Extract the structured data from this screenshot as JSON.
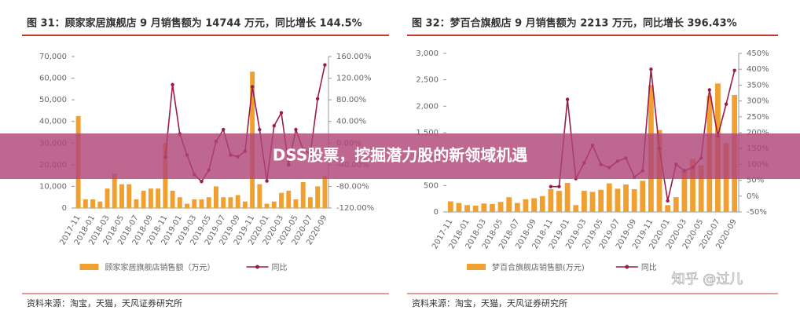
{
  "chart_data": [
    {
      "type": "bar-line",
      "title": "图 31：顾家家居旗舰店 9 月销售额为 14744 万元，同比增长 144.5%",
      "categories": [
        "2017-11",
        null,
        "2018-01",
        null,
        "2018-03",
        null,
        "2018-05",
        null,
        "2018-07",
        null,
        "2018-09",
        null,
        "2018-11",
        null,
        "2019-01",
        null,
        "2019-03",
        null,
        "2019-05",
        null,
        "2019-07",
        null,
        "2019-09",
        null,
        "2019-11",
        null,
        "2020-01",
        null,
        "2020-03",
        null,
        "2020-05",
        null,
        "2020-07",
        null,
        "2020-09"
      ],
      "series": [
        {
          "name": "顾家家居旗舰店销售额（万元）",
          "color": "#f0a030",
          "kind": "bar",
          "values": [
            42500,
            4000,
            4000,
            3000,
            9000,
            16000,
            11000,
            11000,
            4000,
            8000,
            9000,
            9000,
            30000,
            8000,
            5000,
            2000,
            4000,
            4000,
            5000,
            10000,
            5000,
            5000,
            6000,
            3000,
            63000,
            11000,
            2000,
            3000,
            7000,
            8000,
            4000,
            12000,
            5000,
            10000,
            14744
          ]
        },
        {
          "name": "同比",
          "color": "#9b1c4a",
          "kind": "line",
          "axis": "y2",
          "values": [
            null,
            null,
            null,
            null,
            null,
            null,
            null,
            null,
            null,
            null,
            null,
            null,
            -26,
            108,
            17,
            -22,
            -58,
            -71,
            -50,
            3,
            25,
            -22,
            -25,
            -15,
            104,
            25,
            -70,
            32,
            56,
            -40,
            25,
            -12,
            -20,
            82,
            144.5
          ]
        }
      ],
      "ylim": [
        0,
        70000
      ],
      "yticks": [
        0,
        {
          "value": 10000,
          "label": "10,000"
        },
        {
          "value": 20000,
          "label": "20,000"
        },
        {
          "value": 30000,
          "label": "30,000"
        },
        {
          "value": 40000,
          "label": "40,000"
        },
        {
          "value": 50000,
          "label": "50,000"
        },
        {
          "value": 60000,
          "label": "60,000"
        },
        {
          "value": 70000,
          "label": "70,000"
        }
      ],
      "y2lim": [
        -120,
        160
      ],
      "y2ticks": [
        {
          "value": -120,
          "label": "-120.00%"
        },
        {
          "value": -80,
          "label": "-80.00%"
        },
        {
          "value": -40,
          "label": "-40.00%"
        },
        {
          "value": 0,
          "label": "0.00%"
        },
        {
          "value": 40,
          "label": "40.00%"
        },
        {
          "value": 80,
          "label": "80.00%"
        },
        {
          "value": 120,
          "label": "120.00%"
        },
        {
          "value": 160,
          "label": "160.00%"
        }
      ],
      "source": "资料来源：淘宝，天猫，天风证券研究所"
    },
    {
      "type": "bar-line",
      "title": "图 32：梦百合旗舰店 9 月销售额为 2213 万元，同比增长 396.43%",
      "categories": [
        "2017-11",
        null,
        "2018-01",
        null,
        "2018-03",
        null,
        "2018-05",
        null,
        "2018-07",
        null,
        "2018-09",
        null,
        "2018-11",
        null,
        "2019-01",
        null,
        "2019-03",
        null,
        "2019-05",
        null,
        "2019-07",
        null,
        "2019-09",
        null,
        "2019-11",
        null,
        "2020-01",
        null,
        "2020-03",
        null,
        "2020-05",
        null,
        "2020-07",
        null,
        "2020-09"
      ],
      "series": [
        {
          "name": "梦百合旗舰店销售额(万元)",
          "color": "#f0a030",
          "kind": "bar",
          "values": [
            200,
            170,
            130,
            120,
            160,
            150,
            190,
            280,
            170,
            240,
            260,
            300,
            430,
            400,
            550,
            130,
            400,
            380,
            420,
            540,
            440,
            520,
            430,
            590,
            2400,
            1550,
            130,
            280,
            780,
            1000,
            880,
            2200,
            2430,
            1300,
            2213
          ]
        },
        {
          "name": "同比",
          "color": "#9b1c4a",
          "kind": "line",
          "axis": "y2",
          "values": [
            null,
            null,
            null,
            null,
            null,
            null,
            null,
            null,
            null,
            null,
            null,
            null,
            30,
            30,
            305,
            55,
            105,
            160,
            100,
            90,
            110,
            120,
            60,
            80,
            400,
            150,
            -15,
            100,
            80,
            90,
            120,
            335,
            190,
            290,
            396.43
          ]
        }
      ],
      "ylim": [
        0,
        3000
      ],
      "yticks": [
        0,
        500,
        {
          "value": 1000,
          "label": "1,000"
        },
        {
          "value": 1500,
          "label": "1,500"
        },
        {
          "value": 2000,
          "label": "2,000"
        },
        {
          "value": 2500,
          "label": "2,500"
        },
        {
          "value": 3000,
          "label": "3,000"
        }
      ],
      "y2lim": [
        -50,
        450
      ],
      "y2ticks": [
        {
          "value": -50,
          "label": "-50%"
        },
        {
          "value": 0,
          "label": "0%"
        },
        {
          "value": 50,
          "label": "50%"
        },
        {
          "value": 100,
          "label": "100%"
        },
        {
          "value": 150,
          "label": "150%"
        },
        {
          "value": 200,
          "label": "200%"
        },
        {
          "value": 250,
          "label": "250%"
        },
        {
          "value": 300,
          "label": "300%"
        },
        {
          "value": 350,
          "label": "350%"
        },
        {
          "value": 400,
          "label": "400%"
        },
        {
          "value": 450,
          "label": "450%"
        }
      ],
      "source": "资料来源：淘宝，天猫，天风证券研究所"
    }
  ],
  "banner": {
    "title": "DSS股票，挖掘潜力股的新领域机遇"
  },
  "watermark": "知乎 @过儿"
}
